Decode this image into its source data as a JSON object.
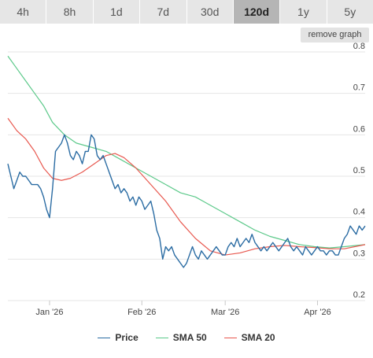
{
  "tabs": [
    {
      "label": "4h"
    },
    {
      "label": "8h"
    },
    {
      "label": "1d"
    },
    {
      "label": "7d"
    },
    {
      "label": "30d"
    },
    {
      "label": "120d",
      "active": true
    },
    {
      "label": "1y"
    },
    {
      "label": "5y"
    }
  ],
  "remove_graph_label": "remove graph",
  "colors": {
    "price": "#2b6ca3",
    "sma50": "#5cc98a",
    "sma20": "#e8584f"
  },
  "chart_data": {
    "type": "line",
    "ylim": [
      0.2,
      0.8
    ],
    "yticks": [
      0.2,
      0.3,
      0.4,
      0.5,
      0.6,
      0.7,
      0.8
    ],
    "xlim": [
      "2025-12-18",
      "2026-04-17"
    ],
    "xticks": [
      {
        "date": "2026-01-01",
        "label": "Jan '26"
      },
      {
        "date": "2026-02-01",
        "label": "Feb '26"
      },
      {
        "date": "2026-03-01",
        "label": "Mar '26"
      },
      {
        "date": "2026-04-01",
        "label": "Apr '26"
      }
    ],
    "grid": true,
    "legend": "bottom",
    "series": [
      {
        "name": "Price",
        "color_key": "price",
        "points": [
          [
            "2025-12-18",
            0.53
          ],
          [
            "2025-12-19",
            0.5
          ],
          [
            "2025-12-20",
            0.47
          ],
          [
            "2025-12-21",
            0.49
          ],
          [
            "2025-12-22",
            0.51
          ],
          [
            "2025-12-23",
            0.5
          ],
          [
            "2025-12-24",
            0.5
          ],
          [
            "2025-12-25",
            0.49
          ],
          [
            "2025-12-26",
            0.48
          ],
          [
            "2025-12-27",
            0.48
          ],
          [
            "2025-12-28",
            0.48
          ],
          [
            "2025-12-29",
            0.47
          ],
          [
            "2025-12-30",
            0.45
          ],
          [
            "2025-12-31",
            0.42
          ],
          [
            "2026-01-01",
            0.4
          ],
          [
            "2026-01-02",
            0.47
          ],
          [
            "2026-01-03",
            0.56
          ],
          [
            "2026-01-04",
            0.57
          ],
          [
            "2026-01-05",
            0.58
          ],
          [
            "2026-01-06",
            0.6
          ],
          [
            "2026-01-07",
            0.58
          ],
          [
            "2026-01-08",
            0.55
          ],
          [
            "2026-01-09",
            0.54
          ],
          [
            "2026-01-10",
            0.56
          ],
          [
            "2026-01-11",
            0.55
          ],
          [
            "2026-01-12",
            0.53
          ],
          [
            "2026-01-13",
            0.56
          ],
          [
            "2026-01-14",
            0.56
          ],
          [
            "2026-01-15",
            0.6
          ],
          [
            "2026-01-16",
            0.59
          ],
          [
            "2026-01-17",
            0.55
          ],
          [
            "2026-01-18",
            0.54
          ],
          [
            "2026-01-19",
            0.55
          ],
          [
            "2026-01-20",
            0.53
          ],
          [
            "2026-01-21",
            0.51
          ],
          [
            "2026-01-22",
            0.49
          ],
          [
            "2026-01-23",
            0.47
          ],
          [
            "2026-01-24",
            0.48
          ],
          [
            "2026-01-25",
            0.46
          ],
          [
            "2026-01-26",
            0.47
          ],
          [
            "2026-01-27",
            0.46
          ],
          [
            "2026-01-28",
            0.44
          ],
          [
            "2026-01-29",
            0.45
          ],
          [
            "2026-01-30",
            0.43
          ],
          [
            "2026-01-31",
            0.45
          ],
          [
            "2026-02-01",
            0.44
          ],
          [
            "2026-02-02",
            0.42
          ],
          [
            "2026-02-03",
            0.43
          ],
          [
            "2026-02-04",
            0.44
          ],
          [
            "2026-02-05",
            0.41
          ],
          [
            "2026-02-06",
            0.37
          ],
          [
            "2026-02-07",
            0.35
          ],
          [
            "2026-02-08",
            0.3
          ],
          [
            "2026-02-09",
            0.33
          ],
          [
            "2026-02-10",
            0.32
          ],
          [
            "2026-02-11",
            0.33
          ],
          [
            "2026-02-12",
            0.31
          ],
          [
            "2026-02-13",
            0.3
          ],
          [
            "2026-02-14",
            0.29
          ],
          [
            "2026-02-15",
            0.28
          ],
          [
            "2026-02-16",
            0.29
          ],
          [
            "2026-02-17",
            0.31
          ],
          [
            "2026-02-18",
            0.33
          ],
          [
            "2026-02-19",
            0.31
          ],
          [
            "2026-02-20",
            0.3
          ],
          [
            "2026-02-21",
            0.32
          ],
          [
            "2026-02-22",
            0.31
          ],
          [
            "2026-02-23",
            0.3
          ],
          [
            "2026-02-24",
            0.31
          ],
          [
            "2026-02-25",
            0.32
          ],
          [
            "2026-02-26",
            0.33
          ],
          [
            "2026-02-27",
            0.32
          ],
          [
            "2026-02-28",
            0.31
          ],
          [
            "2026-03-01",
            0.31
          ],
          [
            "2026-03-02",
            0.33
          ],
          [
            "2026-03-03",
            0.34
          ],
          [
            "2026-03-04",
            0.33
          ],
          [
            "2026-03-05",
            0.35
          ],
          [
            "2026-03-06",
            0.33
          ],
          [
            "2026-03-07",
            0.34
          ],
          [
            "2026-03-08",
            0.35
          ],
          [
            "2026-03-09",
            0.34
          ],
          [
            "2026-03-10",
            0.36
          ],
          [
            "2026-03-11",
            0.34
          ],
          [
            "2026-03-12",
            0.33
          ],
          [
            "2026-03-13",
            0.32
          ],
          [
            "2026-03-14",
            0.33
          ],
          [
            "2026-03-15",
            0.32
          ],
          [
            "2026-03-16",
            0.33
          ],
          [
            "2026-03-17",
            0.34
          ],
          [
            "2026-03-18",
            0.33
          ],
          [
            "2026-03-19",
            0.32
          ],
          [
            "2026-03-20",
            0.33
          ],
          [
            "2026-03-21",
            0.34
          ],
          [
            "2026-03-22",
            0.35
          ],
          [
            "2026-03-23",
            0.33
          ],
          [
            "2026-03-24",
            0.32
          ],
          [
            "2026-03-25",
            0.33
          ],
          [
            "2026-03-26",
            0.32
          ],
          [
            "2026-03-27",
            0.31
          ],
          [
            "2026-03-28",
            0.33
          ],
          [
            "2026-03-29",
            0.32
          ],
          [
            "2026-03-30",
            0.31
          ],
          [
            "2026-03-31",
            0.32
          ],
          [
            "2026-04-01",
            0.33
          ],
          [
            "2026-04-02",
            0.32
          ],
          [
            "2026-04-03",
            0.32
          ],
          [
            "2026-04-04",
            0.31
          ],
          [
            "2026-04-05",
            0.32
          ],
          [
            "2026-04-06",
            0.32
          ],
          [
            "2026-04-07",
            0.31
          ],
          [
            "2026-04-08",
            0.31
          ],
          [
            "2026-04-09",
            0.33
          ],
          [
            "2026-04-10",
            0.35
          ],
          [
            "2026-04-11",
            0.36
          ],
          [
            "2026-04-12",
            0.38
          ],
          [
            "2026-04-13",
            0.37
          ],
          [
            "2026-04-14",
            0.36
          ],
          [
            "2026-04-15",
            0.38
          ],
          [
            "2026-04-16",
            0.37
          ],
          [
            "2026-04-17",
            0.38
          ]
        ]
      },
      {
        "name": "SMA 50",
        "color_key": "sma50",
        "points": [
          [
            "2025-12-18",
            0.79
          ],
          [
            "2025-12-21",
            0.76
          ],
          [
            "2025-12-24",
            0.73
          ],
          [
            "2025-12-27",
            0.7
          ],
          [
            "2025-12-30",
            0.67
          ],
          [
            "2026-01-02",
            0.63
          ],
          [
            "2026-01-06",
            0.6
          ],
          [
            "2026-01-10",
            0.58
          ],
          [
            "2026-01-15",
            0.57
          ],
          [
            "2026-01-20",
            0.56
          ],
          [
            "2026-01-25",
            0.54
          ],
          [
            "2026-01-30",
            0.52
          ],
          [
            "2026-02-04",
            0.5
          ],
          [
            "2026-02-09",
            0.48
          ],
          [
            "2026-02-14",
            0.46
          ],
          [
            "2026-02-19",
            0.45
          ],
          [
            "2026-02-24",
            0.43
          ],
          [
            "2026-03-01",
            0.41
          ],
          [
            "2026-03-06",
            0.39
          ],
          [
            "2026-03-11",
            0.37
          ],
          [
            "2026-03-16",
            0.355
          ],
          [
            "2026-03-21",
            0.345
          ],
          [
            "2026-03-26",
            0.335
          ],
          [
            "2026-03-31",
            0.33
          ],
          [
            "2026-04-05",
            0.327
          ],
          [
            "2026-04-10",
            0.33
          ],
          [
            "2026-04-17",
            0.335
          ]
        ]
      },
      {
        "name": "SMA 20",
        "color_key": "sma20",
        "points": [
          [
            "2025-12-18",
            0.64
          ],
          [
            "2025-12-21",
            0.61
          ],
          [
            "2025-12-24",
            0.59
          ],
          [
            "2025-12-27",
            0.56
          ],
          [
            "2025-12-30",
            0.52
          ],
          [
            "2026-01-02",
            0.495
          ],
          [
            "2026-01-05",
            0.49
          ],
          [
            "2026-01-08",
            0.495
          ],
          [
            "2026-01-12",
            0.51
          ],
          [
            "2026-01-16",
            0.53
          ],
          [
            "2026-01-20",
            0.55
          ],
          [
            "2026-01-23",
            0.555
          ],
          [
            "2026-01-26",
            0.545
          ],
          [
            "2026-01-30",
            0.52
          ],
          [
            "2026-02-04",
            0.48
          ],
          [
            "2026-02-09",
            0.44
          ],
          [
            "2026-02-14",
            0.39
          ],
          [
            "2026-02-19",
            0.35
          ],
          [
            "2026-02-24",
            0.32
          ],
          [
            "2026-03-01",
            0.31
          ],
          [
            "2026-03-06",
            0.315
          ],
          [
            "2026-03-11",
            0.325
          ],
          [
            "2026-03-16",
            0.33
          ],
          [
            "2026-03-21",
            0.333
          ],
          [
            "2026-03-26",
            0.33
          ],
          [
            "2026-03-31",
            0.328
          ],
          [
            "2026-04-05",
            0.325
          ],
          [
            "2026-04-10",
            0.325
          ],
          [
            "2026-04-17",
            0.335
          ]
        ]
      }
    ]
  }
}
